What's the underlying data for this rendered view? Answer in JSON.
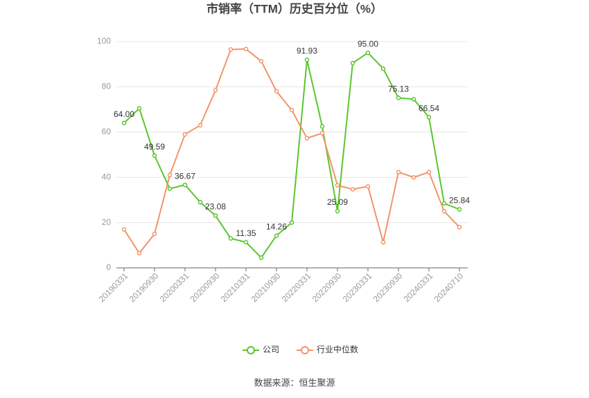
{
  "chart_data": {
    "type": "line",
    "title": "市销率（TTM）历史百分位（%）",
    "source": "数据来源：恒生聚源",
    "categories": [
      "20190331",
      null,
      "20190930",
      null,
      "20200331",
      null,
      "20200930",
      null,
      "20210331",
      null,
      "20210930",
      null,
      "20220331",
      null,
      "20220930",
      null,
      "20230331",
      null,
      "20230930",
      null,
      "20240331",
      null,
      "20240710"
    ],
    "series": [
      {
        "name": "公司",
        "color": "#5ac52e",
        "values": [
          64.0,
          70.5,
          49.59,
          35,
          36.67,
          29,
          23.08,
          13,
          11.35,
          4.5,
          14.26,
          20,
          91.93,
          62.5,
          25.09,
          90.5,
          95.0,
          88,
          75.13,
          74.5,
          66.54,
          28.5,
          25.84
        ],
        "value_labels": [
          "64.00",
          null,
          "49.59",
          null,
          "36.67",
          null,
          "23.08",
          null,
          "11.35",
          null,
          "14.26",
          null,
          "91.93",
          null,
          "25.09",
          null,
          "95.00",
          null,
          "75.13",
          null,
          "66.54",
          null,
          "25.84"
        ]
      },
      {
        "name": "行业中位数",
        "color": "#f2946a",
        "values": [
          17,
          6.5,
          15,
          41,
          59,
          63,
          78.5,
          96.5,
          96.7,
          91.3,
          78,
          69.7,
          57.3,
          59.5,
          36.5,
          34.7,
          36,
          11.3,
          42.3,
          40,
          42.3,
          25,
          18
        ]
      }
    ],
    "ylim": [
      0,
      100
    ],
    "yticks": [
      0,
      20,
      40,
      60,
      80,
      100
    ],
    "grid": true,
    "legend": "bottom"
  }
}
